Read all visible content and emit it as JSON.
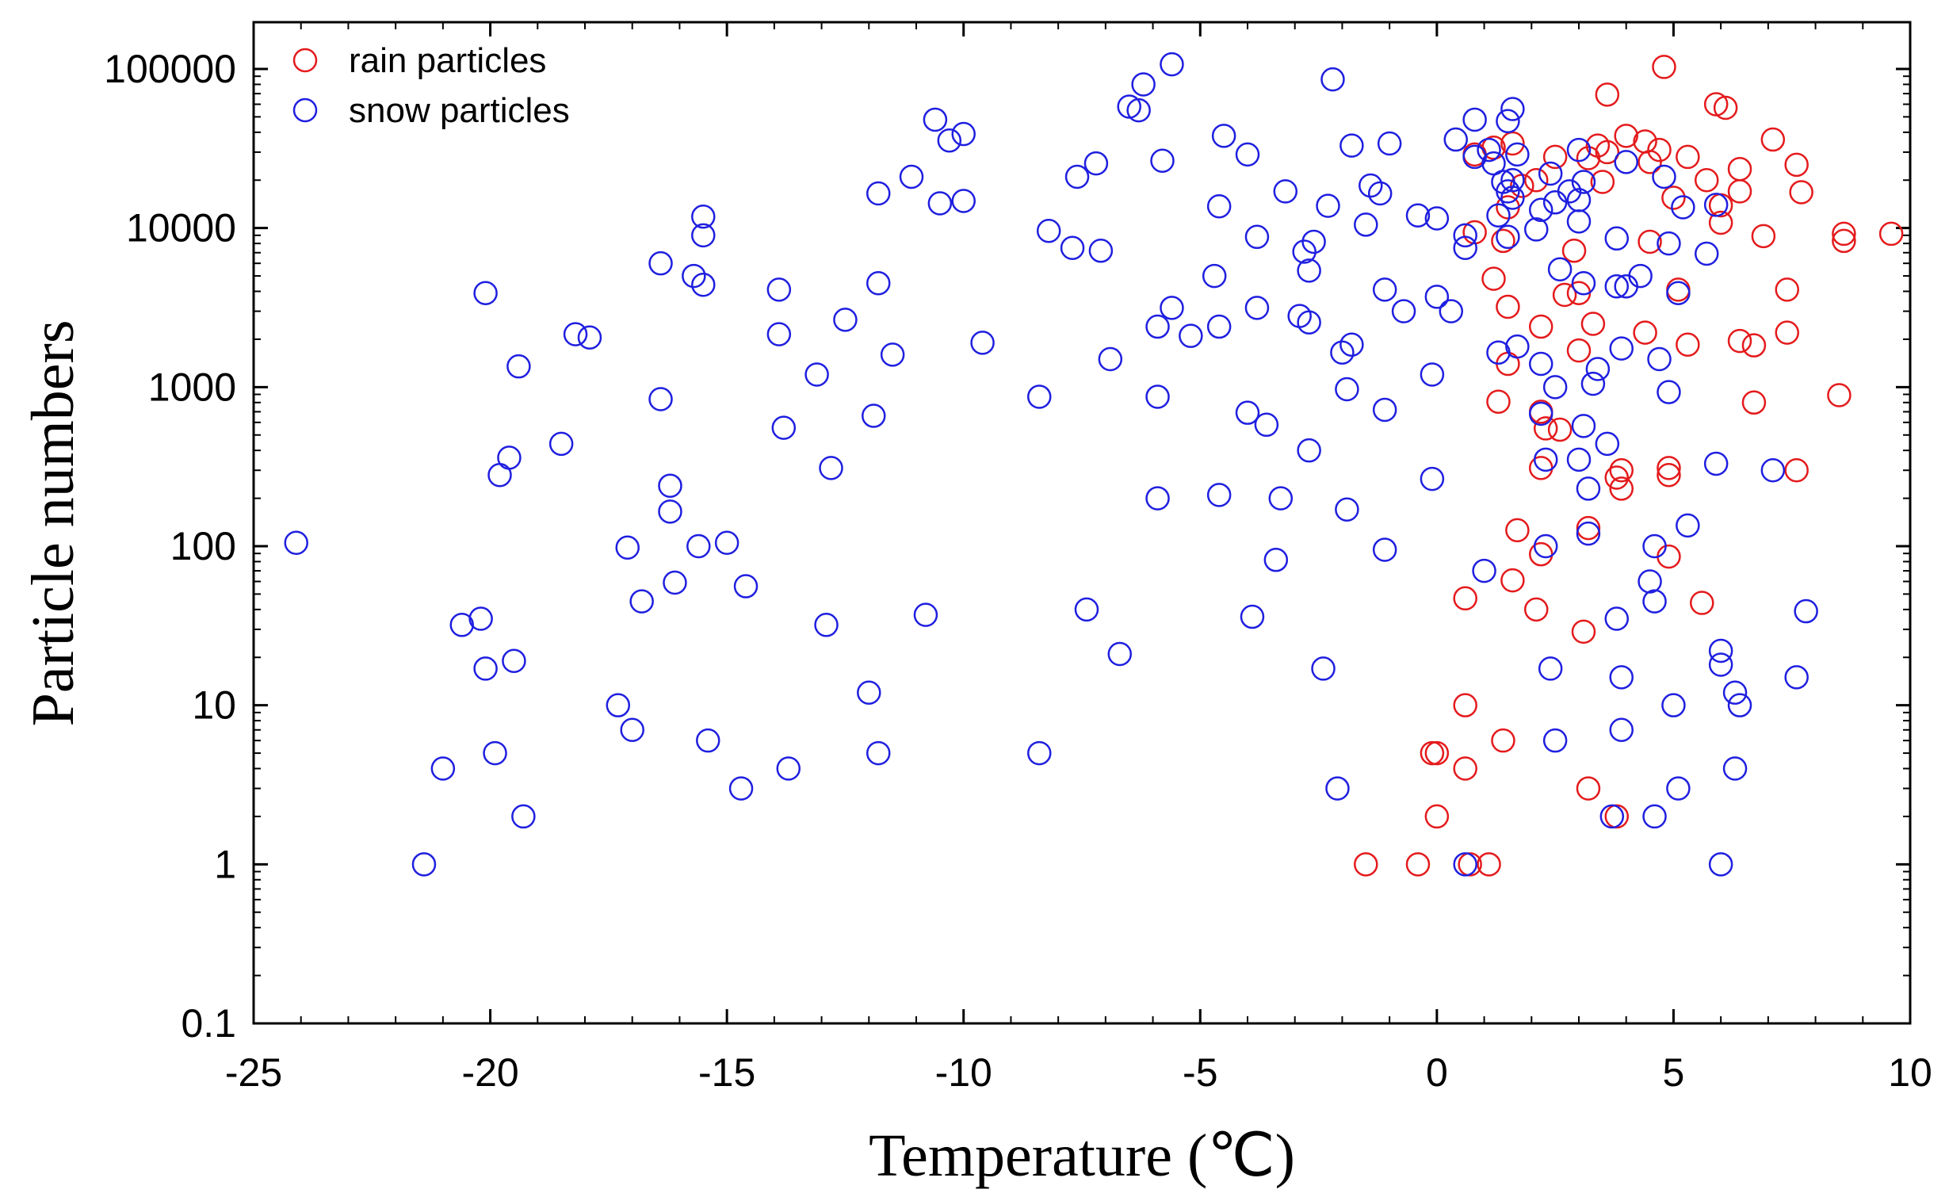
{
  "chart_data": {
    "type": "scatter",
    "title": "",
    "xlabel": "Temperature (℃)",
    "ylabel": "Particle numbers",
    "xlim": [
      -25,
      10
    ],
    "ylim": [
      0.1,
      200000
    ],
    "yscale": "log",
    "grid": false,
    "legend_position": "top-left",
    "x_ticks": [
      -25,
      -20,
      -15,
      -10,
      -5,
      0,
      5,
      10
    ],
    "x_tick_labels": [
      "-25",
      "-20",
      "-15",
      "-10",
      "-5",
      "0",
      "5",
      "10"
    ],
    "y_ticks": [
      0.1,
      1,
      10,
      100,
      1000,
      10000,
      100000
    ],
    "y_tick_labels": [
      "0.1",
      "1",
      "10",
      "100",
      "1000",
      "10000",
      "100000"
    ],
    "colors": {
      "rain": "#e41a1c",
      "snow": "#1f1fe0"
    },
    "series": [
      {
        "name": "rain particles",
        "color": "#e41a1c",
        "marker": "open-circle",
        "points": [
          [
            -1.5,
            1
          ],
          [
            -0.4,
            1
          ],
          [
            0.7,
            1
          ],
          [
            1.1,
            1
          ],
          [
            0,
            2
          ],
          [
            3.2,
            3
          ],
          [
            3.8,
            2
          ],
          [
            -0.1,
            5
          ],
          [
            0,
            5
          ],
          [
            0.6,
            4
          ],
          [
            1.4,
            6
          ],
          [
            0.6,
            10
          ],
          [
            3.1,
            29
          ],
          [
            2.1,
            40
          ],
          [
            5.6,
            44
          ],
          [
            0.6,
            47
          ],
          [
            1.6,
            61
          ],
          [
            4.9,
            86
          ],
          [
            2.2,
            89
          ],
          [
            1.7,
            126
          ],
          [
            3.2,
            130
          ],
          [
            3.9,
            230
          ],
          [
            3.8,
            270
          ],
          [
            4.9,
            280
          ],
          [
            3.9,
            300
          ],
          [
            4.9,
            310
          ],
          [
            7.6,
            300
          ],
          [
            2.2,
            310
          ],
          [
            2.6,
            540
          ],
          [
            2.3,
            550
          ],
          [
            2.2,
            700
          ],
          [
            1.3,
            810
          ],
          [
            6.7,
            800
          ],
          [
            8.5,
            890
          ],
          [
            1.5,
            1400
          ],
          [
            3.0,
            1700
          ],
          [
            5.3,
            1850
          ],
          [
            6.4,
            1950
          ],
          [
            6.7,
            1830
          ],
          [
            2.2,
            2400
          ],
          [
            3.3,
            2500
          ],
          [
            4.4,
            2200
          ],
          [
            7.4,
            2200
          ],
          [
            1.5,
            3200
          ],
          [
            2.7,
            3800
          ],
          [
            3.0,
            3900
          ],
          [
            5.1,
            4100
          ],
          [
            7.4,
            4100
          ],
          [
            1.2,
            4800
          ],
          [
            2.9,
            7200
          ],
          [
            1.4,
            8300
          ],
          [
            4.5,
            8200
          ],
          [
            8.6,
            8300
          ],
          [
            8.6,
            9200
          ],
          [
            9.6,
            9200
          ],
          [
            0.8,
            9400
          ],
          [
            6.0,
            10800
          ],
          [
            6.9,
            8900
          ],
          [
            7.7,
            16800
          ],
          [
            6.0,
            13900
          ],
          [
            5.0,
            15500
          ],
          [
            1.5,
            13500
          ],
          [
            6.4,
            17000
          ],
          [
            1.8,
            18400
          ],
          [
            5.7,
            20000
          ],
          [
            3.5,
            19500
          ],
          [
            6.4,
            23500
          ],
          [
            7.6,
            25000
          ],
          [
            4.5,
            26000
          ],
          [
            3.2,
            27500
          ],
          [
            5.3,
            28000
          ],
          [
            2.5,
            28000
          ],
          [
            0.8,
            29000
          ],
          [
            4.7,
            31000
          ],
          [
            3.6,
            30000
          ],
          [
            3.4,
            33000
          ],
          [
            1.6,
            34000
          ],
          [
            4.0,
            38000
          ],
          [
            4.4,
            35000
          ],
          [
            7.1,
            36000
          ],
          [
            5.9,
            60000
          ],
          [
            6.1,
            57000
          ],
          [
            3.6,
            69000
          ],
          [
            4.8,
            103000
          ],
          [
            2.1,
            20000
          ],
          [
            1.2,
            32000
          ]
        ]
      },
      {
        "name": "snow particles",
        "color": "#1f1fe0",
        "marker": "open-circle",
        "points": [
          [
            -24.1,
            105
          ],
          [
            -21.4,
            1
          ],
          [
            -21.0,
            4
          ],
          [
            -20.6,
            32
          ],
          [
            -20.2,
            35
          ],
          [
            -20.1,
            17
          ],
          [
            -20.1,
            3900
          ],
          [
            -19.9,
            5
          ],
          [
            -19.8,
            280
          ],
          [
            -19.6,
            360
          ],
          [
            -19.5,
            19
          ],
          [
            -19.4,
            1350
          ],
          [
            -19.3,
            2
          ],
          [
            -18.5,
            440
          ],
          [
            -18.2,
            2150
          ],
          [
            -17.9,
            2050
          ],
          [
            -17.3,
            10
          ],
          [
            -17.1,
            98
          ],
          [
            -17.0,
            7
          ],
          [
            -16.8,
            45
          ],
          [
            -16.4,
            840
          ],
          [
            -16.4,
            6000
          ],
          [
            -16.2,
            165
          ],
          [
            -16.2,
            240
          ],
          [
            -16.1,
            59
          ],
          [
            -15.7,
            5000
          ],
          [
            -15.6,
            100
          ],
          [
            -15.5,
            4400
          ],
          [
            -15.5,
            11800
          ],
          [
            -15.5,
            9000
          ],
          [
            -15.4,
            6
          ],
          [
            -15.0,
            105
          ],
          [
            -14.7,
            3
          ],
          [
            -14.6,
            56
          ],
          [
            -13.9,
            4100
          ],
          [
            -13.9,
            2150
          ],
          [
            -13.8,
            555
          ],
          [
            -13.7,
            4
          ],
          [
            -13.1,
            1200
          ],
          [
            -12.9,
            32
          ],
          [
            -12.8,
            310
          ],
          [
            -12.5,
            2650
          ],
          [
            -12.0,
            12
          ],
          [
            -11.9,
            660
          ],
          [
            -11.8,
            5
          ],
          [
            -11.8,
            4500
          ],
          [
            -11.8,
            16500
          ],
          [
            -11.5,
            1600
          ],
          [
            -11.1,
            21000
          ],
          [
            -10.8,
            37
          ],
          [
            -10.6,
            48000
          ],
          [
            -10.5,
            14300
          ],
          [
            -10.3,
            35500
          ],
          [
            -10.0,
            39000
          ],
          [
            -10.0,
            14800
          ],
          [
            -9.6,
            1900
          ],
          [
            -8.4,
            5
          ],
          [
            -8.4,
            870
          ],
          [
            -8.2,
            9600
          ],
          [
            -7.7,
            7500
          ],
          [
            -7.6,
            21000
          ],
          [
            -7.4,
            40
          ],
          [
            -7.2,
            25500
          ],
          [
            -7.1,
            7200
          ],
          [
            -6.9,
            1500
          ],
          [
            -6.7,
            21
          ],
          [
            -6.5,
            58000
          ],
          [
            -6.3,
            55000
          ],
          [
            -6.2,
            80000
          ],
          [
            -5.9,
            2400
          ],
          [
            -5.9,
            870
          ],
          [
            -5.9,
            200
          ],
          [
            -5.8,
            26500
          ],
          [
            -5.6,
            3150
          ],
          [
            -5.6,
            107000
          ],
          [
            -5.2,
            2100
          ],
          [
            -4.7,
            5000
          ],
          [
            -4.6,
            210
          ],
          [
            -4.6,
            2400
          ],
          [
            -4.6,
            13700
          ],
          [
            -4.5,
            38000
          ],
          [
            -4.0,
            690
          ],
          [
            -4.0,
            29000
          ],
          [
            -3.9,
            36
          ],
          [
            -3.8,
            8800
          ],
          [
            -3.8,
            3150
          ],
          [
            -3.6,
            580
          ],
          [
            -3.4,
            82
          ],
          [
            -3.3,
            200
          ],
          [
            -3.2,
            17000
          ],
          [
            -2.9,
            2800
          ],
          [
            -2.8,
            7100
          ],
          [
            -2.7,
            400
          ],
          [
            -2.7,
            5400
          ],
          [
            -2.7,
            2550
          ],
          [
            -2.6,
            8200
          ],
          [
            -2.4,
            17
          ],
          [
            -2.3,
            13800
          ],
          [
            -2.2,
            86000
          ],
          [
            -2.1,
            3
          ],
          [
            -2.0,
            1650
          ],
          [
            -1.9,
            970
          ],
          [
            -1.9,
            170
          ],
          [
            -1.8,
            1850
          ],
          [
            -1.8,
            33000
          ],
          [
            -1.5,
            10500
          ],
          [
            -1.4,
            18500
          ],
          [
            -1.2,
            16500
          ],
          [
            -1.1,
            95
          ],
          [
            -1.1,
            4100
          ],
          [
            -1.1,
            720
          ],
          [
            -1.0,
            34000
          ],
          [
            -0.7,
            3000
          ],
          [
            -0.4,
            12000
          ],
          [
            -0.1,
            1200
          ],
          [
            -0.1,
            265
          ],
          [
            0,
            3700
          ],
          [
            0,
            11500
          ],
          [
            0.3,
            3000
          ],
          [
            0.4,
            36000
          ],
          [
            0.6,
            7500
          ],
          [
            0.6,
            9000
          ],
          [
            0.6,
            1
          ],
          [
            0.8,
            28000
          ],
          [
            0.8,
            48000
          ],
          [
            1.0,
            70
          ],
          [
            1.1,
            31000
          ],
          [
            1.2,
            25500
          ],
          [
            1.3,
            12000
          ],
          [
            1.3,
            1650
          ],
          [
            1.4,
            19500
          ],
          [
            1.5,
            17000
          ],
          [
            1.5,
            47000
          ],
          [
            1.6,
            56000
          ],
          [
            1.6,
            20000
          ],
          [
            1.6,
            15500
          ],
          [
            1.7,
            1800
          ],
          [
            1.7,
            29000
          ],
          [
            2.1,
            9800
          ],
          [
            2.2,
            13000
          ],
          [
            2.2,
            1400
          ],
          [
            2.2,
            680
          ],
          [
            2.3,
            350
          ],
          [
            2.3,
            100
          ],
          [
            2.4,
            17
          ],
          [
            2.4,
            22000
          ],
          [
            2.5,
            1000
          ],
          [
            2.5,
            14500
          ],
          [
            2.5,
            6
          ],
          [
            2.6,
            5500
          ],
          [
            2.8,
            17000
          ],
          [
            3.0,
            11000
          ],
          [
            3.0,
            15000
          ],
          [
            3.0,
            31000
          ],
          [
            3.0,
            350
          ],
          [
            3.1,
            570
          ],
          [
            3.1,
            19500
          ],
          [
            3.1,
            4500
          ],
          [
            3.2,
            230
          ],
          [
            3.2,
            120
          ],
          [
            3.3,
            1050
          ],
          [
            3.4,
            1300
          ],
          [
            3.6,
            440
          ],
          [
            3.8,
            35
          ],
          [
            3.8,
            8600
          ],
          [
            3.8,
            4300
          ],
          [
            3.9,
            1750
          ],
          [
            3.9,
            7
          ],
          [
            3.9,
            15
          ],
          [
            4.0,
            4300
          ],
          [
            4.0,
            26000
          ],
          [
            4.3,
            5000
          ],
          [
            4.5,
            60
          ],
          [
            4.6,
            100
          ],
          [
            4.6,
            45
          ],
          [
            4.6,
            2
          ],
          [
            4.7,
            1500
          ],
          [
            4.8,
            21000
          ],
          [
            4.9,
            930
          ],
          [
            4.9,
            8000
          ],
          [
            5.0,
            10
          ],
          [
            5.1,
            3
          ],
          [
            5.1,
            3900
          ],
          [
            5.2,
            13500
          ],
          [
            5.3,
            135
          ],
          [
            5.7,
            6900
          ],
          [
            5.9,
            330
          ],
          [
            5.9,
            14000
          ],
          [
            6.0,
            22
          ],
          [
            6.0,
            18
          ],
          [
            6.0,
            1
          ],
          [
            6.3,
            4
          ],
          [
            6.3,
            12
          ],
          [
            6.4,
            10
          ],
          [
            7.1,
            300
          ],
          [
            7.6,
            15
          ],
          [
            7.8,
            39
          ],
          [
            3.7,
            2
          ],
          [
            1.5,
            8800
          ]
        ]
      }
    ]
  }
}
